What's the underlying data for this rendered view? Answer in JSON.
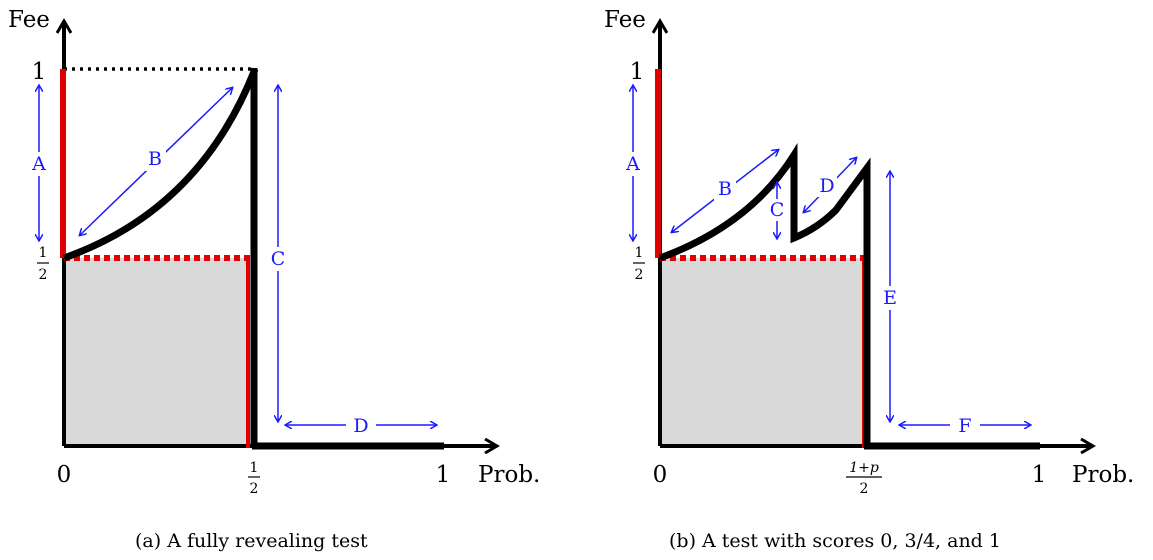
{
  "panels": [
    {
      "caption": "(a) A fully revealing test",
      "y_axis_label": "Fee",
      "x_axis_label": "Prob.",
      "x_ticks": {
        "zero": "0",
        "half_num": "1",
        "half_den": "2",
        "one": "1"
      },
      "y_ticks": {
        "one": "1",
        "half_num": "1",
        "half_den": "2"
      },
      "segment_labels": [
        "A",
        "B",
        "C",
        "D"
      ]
    },
    {
      "caption": "(b) A test with scores 0, 3/4, and 1",
      "y_axis_label": "Fee",
      "x_axis_label": "Prob.",
      "x_ticks": {
        "zero": "0",
        "mid_num": "1+p",
        "mid_den": "2",
        "one": "1"
      },
      "y_ticks": {
        "one": "1",
        "half_num": "1",
        "half_den": "2"
      },
      "segment_labels": [
        "A",
        "B",
        "C",
        "D",
        "E",
        "F"
      ]
    }
  ],
  "colors": {
    "curve": "#000000",
    "highlight": "#e00000",
    "annotation": "#1a1aff",
    "shaded": "#d9d9d9"
  }
}
